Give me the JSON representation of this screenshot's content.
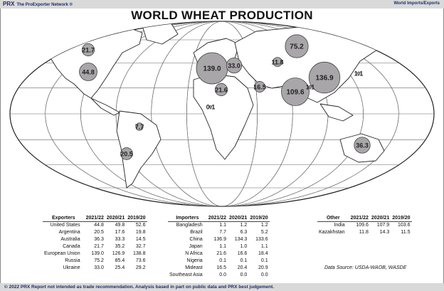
{
  "header": {
    "logo": "PRX",
    "network": "The ProExporter Network ®",
    "section": "World Imports/Exports"
  },
  "chart_data": {
    "type": "bubble-map",
    "title": "WORLD WHEAT PRODUCTION",
    "bubbles": [
      {
        "label": "21.7",
        "value": 21.7,
        "region": "Canada"
      },
      {
        "label": "44.8",
        "value": 44.8,
        "region": "United States"
      },
      {
        "label": "139.0",
        "value": 139.0,
        "region": "European Union"
      },
      {
        "label": "33.0",
        "value": 33.0,
        "region": "Ukraine"
      },
      {
        "label": "75.2",
        "value": 75.2,
        "region": "Russia"
      },
      {
        "label": "11.8",
        "value": 11.8,
        "region": "Kazakhstan"
      },
      {
        "label": "136.9",
        "value": 136.9,
        "region": "China"
      },
      {
        "label": "1.1",
        "value": 1.1,
        "region": "Japan"
      },
      {
        "label": "109.6",
        "value": 109.6,
        "region": "India"
      },
      {
        "label": "1.1",
        "value": 1.1,
        "region": "Bangladesh"
      },
      {
        "label": "16.5",
        "value": 16.5,
        "region": "Mideast"
      },
      {
        "label": "21.6",
        "value": 21.6,
        "region": "N Africa"
      },
      {
        "label": "0.1",
        "value": 0.1,
        "region": "Nigeria"
      },
      {
        "label": "7.7",
        "value": 7.7,
        "region": "Brazil"
      },
      {
        "label": "20.5",
        "value": 20.5,
        "region": "Argentina"
      },
      {
        "label": "36.3",
        "value": 36.3,
        "region": "Australia"
      }
    ]
  },
  "tables": {
    "exporters": {
      "headers": [
        "Exporters",
        "2021/22",
        "2020/21",
        "2019/20"
      ],
      "rows": [
        [
          "United States",
          "44.8",
          "49.8",
          "52.6"
        ],
        [
          "Argentina",
          "20.5",
          "17.6",
          "19.8"
        ],
        [
          "Australia",
          "36.3",
          "33.3",
          "14.5"
        ],
        [
          "Canada",
          "21.7",
          "35.2",
          "32.7"
        ],
        [
          "European Union",
          "139.0",
          "126.9",
          "138.8"
        ],
        [
          "Russia",
          "75.2",
          "85.4",
          "73.6"
        ],
        [
          "Ukraine",
          "33.0",
          "25.4",
          "29.2"
        ]
      ]
    },
    "importers": {
      "headers": [
        "Importers",
        "2021/22",
        "2020/21",
        "2019/20"
      ],
      "rows": [
        [
          "Bangladesh",
          "1.1",
          "1.2",
          "1.2"
        ],
        [
          "Brazil",
          "7.7",
          "6.3",
          "5.2"
        ],
        [
          "China",
          "136.9",
          "134.3",
          "133.6"
        ],
        [
          "Japan",
          "1.1",
          "1.0",
          "1.1"
        ],
        [
          "N Africa",
          "21.6",
          "16.6",
          "18.4"
        ],
        [
          "Nigeria",
          "0.1",
          "0.1",
          "0.1"
        ],
        [
          "Mideast",
          "16.5",
          "20.4",
          "20.9"
        ],
        [
          "Southeast Asia",
          "0.0",
          "0.0",
          "0.0"
        ]
      ]
    },
    "other": {
      "headers": [
        "Other",
        "2021/22",
        "2020/21",
        "2019/20"
      ],
      "rows": [
        [
          "India",
          "109.6",
          "107.9",
          "103.6"
        ],
        [
          "Kazakhstan",
          "11.8",
          "14.3",
          "11.5"
        ]
      ]
    }
  },
  "source": "Data Source: USDA-WAOB, WASDE",
  "footer": "© 2022 PRX   Report not intended as trade recommendation. Analysis based in part on public data and PRX best judgement."
}
